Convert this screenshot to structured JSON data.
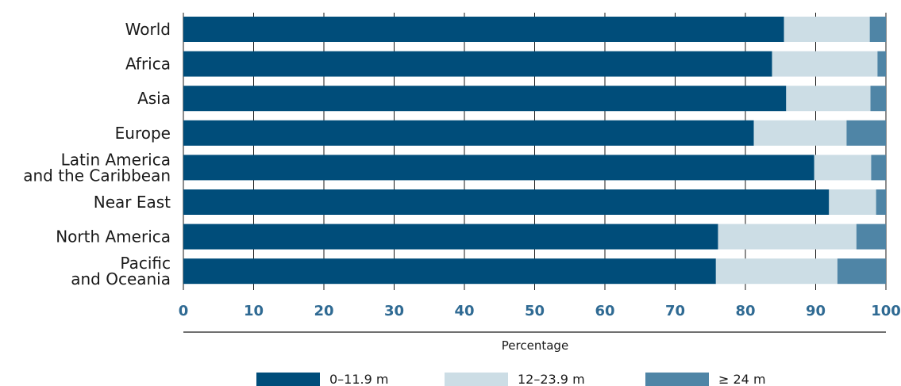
{
  "chart_data": {
    "type": "bar",
    "orientation": "horizontal",
    "stacked": true,
    "categories": [
      [
        "World"
      ],
      [
        "Africa"
      ],
      [
        "Asia"
      ],
      [
        "Europe"
      ],
      [
        "Latin America",
        "and the Caribbean"
      ],
      [
        "Near East"
      ],
      [
        "North America"
      ],
      [
        "Pacific",
        "and Oceania"
      ]
    ],
    "series": [
      {
        "name": "0–11.9 m",
        "color": "#004d7a",
        "values": [
          85.5,
          83.8,
          85.8,
          81.2,
          89.8,
          91.9,
          76.1,
          75.8
        ]
      },
      {
        "name": "12–23.9 m",
        "color": "#ccdde5",
        "values": [
          12.2,
          15.0,
          12.0,
          13.2,
          8.1,
          6.7,
          19.7,
          17.3
        ]
      },
      {
        "name": "≥ 24 m",
        "color": "#4f85a6",
        "values": [
          2.3,
          1.2,
          2.2,
          5.6,
          2.1,
          1.4,
          4.2,
          6.9
        ]
      }
    ],
    "xlim": [
      0,
      100
    ],
    "xticks": [
      0,
      10,
      20,
      30,
      40,
      50,
      60,
      70,
      80,
      90,
      100
    ],
    "xlabel": "Percentage",
    "grid": true,
    "legend_position": "bottom"
  }
}
